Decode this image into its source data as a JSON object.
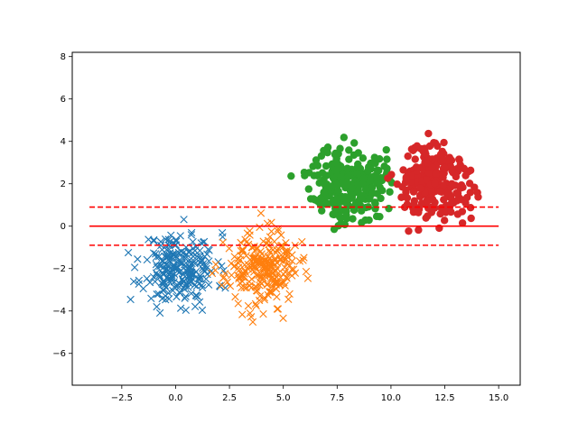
{
  "chart_data": {
    "type": "scatter",
    "title": "",
    "xlabel": "",
    "ylabel": "",
    "xlim": [
      -4.8,
      16.0
    ],
    "ylim": [
      -7.5,
      8.2
    ],
    "x_ticks": [
      -2.5,
      0.0,
      2.5,
      5.0,
      7.5,
      10.0,
      12.5,
      15.0
    ],
    "x_tick_labels": [
      "−2.5",
      "0.0",
      "2.5",
      "5.0",
      "7.5",
      "10.0",
      "12.5",
      "15.0"
    ],
    "y_ticks": [
      -6,
      -4,
      -2,
      0,
      2,
      4,
      6,
      8
    ],
    "y_tick_labels": [
      "−6",
      "−4",
      "−2",
      "0",
      "2",
      "4",
      "6",
      "8"
    ],
    "grid": false,
    "legend": "none",
    "series": [
      {
        "marker": "x",
        "color": "#1f77b4",
        "seed": 11,
        "count": 250,
        "center": [
          0.2,
          -2.0
        ],
        "spread": [
          0.85,
          0.85
        ]
      },
      {
        "marker": "x",
        "color": "#ff7f0e",
        "seed": 23,
        "count": 250,
        "center": [
          4.0,
          -2.0
        ],
        "spread": [
          0.85,
          0.85
        ]
      },
      {
        "marker": "o",
        "color": "#2ca02c",
        "seed": 37,
        "count": 250,
        "center": [
          8.0,
          2.0
        ],
        "spread": [
          0.85,
          0.9
        ]
      },
      {
        "marker": "o",
        "color": "#d62728",
        "seed": 51,
        "count": 250,
        "center": [
          12.0,
          2.0
        ],
        "spread": [
          0.85,
          0.9
        ]
      }
    ],
    "lines": [
      {
        "y": 0.0,
        "x_range": [
          -4.0,
          15.0
        ],
        "style": "solid",
        "color": "#ff0000"
      },
      {
        "y": 0.9,
        "x_range": [
          -4.0,
          15.0
        ],
        "style": "dashed",
        "color": "#ff0000"
      },
      {
        "y": -0.9,
        "x_range": [
          -4.0,
          15.0
        ],
        "style": "dashed",
        "color": "#ff0000"
      }
    ]
  }
}
